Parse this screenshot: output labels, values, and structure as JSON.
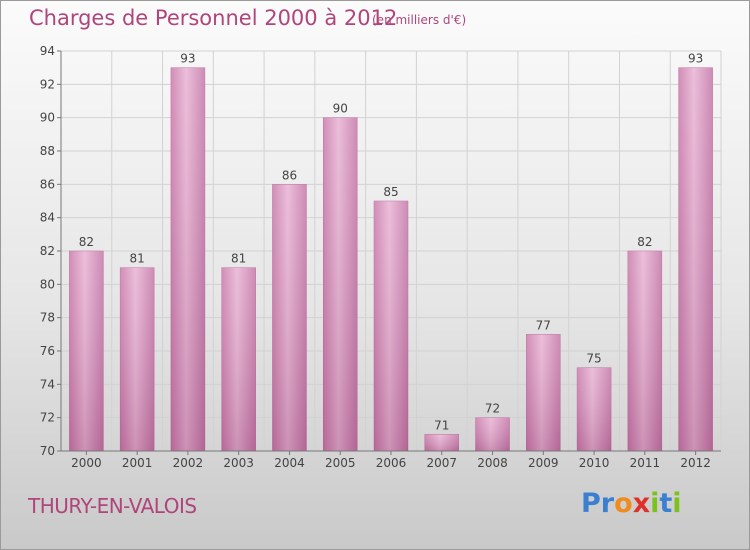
{
  "title": "Charges de Personnel 2000 à 2012",
  "subtitle": "(en milliers d'€)",
  "city": "THURY-EN-VALOIS",
  "logo": {
    "text": "Proxiti",
    "letters": [
      "P",
      "r",
      "o",
      "x",
      "i",
      "t",
      "i"
    ],
    "colors": [
      "#3a7fd0",
      "#3a7fd0",
      "#f08c1e",
      "#e0302a",
      "#7cc21e",
      "#3a7fd0",
      "#7cc21e"
    ]
  },
  "colors": {
    "bar": "#d990bf",
    "bar_light": "#e8b6d6",
    "bar_dark": "#b9689a",
    "accent": "#b0457c"
  },
  "chart_data": {
    "type": "bar",
    "categories": [
      "2000",
      "2001",
      "2002",
      "2003",
      "2004",
      "2005",
      "2006",
      "2007",
      "2008",
      "2009",
      "2010",
      "2011",
      "2012"
    ],
    "values": [
      82,
      81,
      93,
      81,
      86,
      90,
      85,
      71,
      72,
      77,
      75,
      82,
      93
    ],
    "ylim": [
      70,
      94
    ],
    "yticks": [
      70,
      72,
      74,
      76,
      78,
      80,
      82,
      84,
      86,
      88,
      90,
      92,
      94
    ],
    "grid": true
  }
}
